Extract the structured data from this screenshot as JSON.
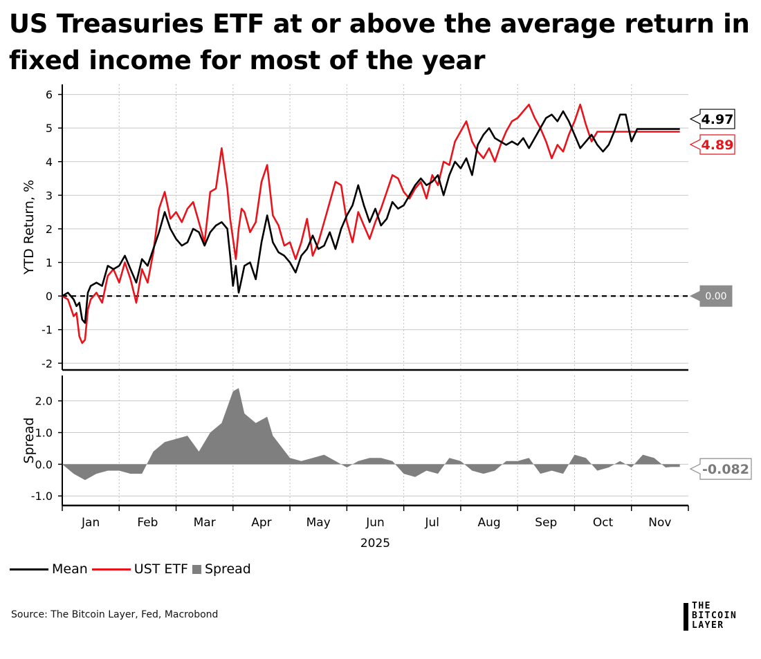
{
  "title": "US Treasuries ETF at or above the average return in fixed income for most of the year",
  "source": "Source: The Bitcoin Layer, Fed, Macrobond",
  "logo": {
    "line1": "THE",
    "line2": "BITCOIN",
    "line3": "LAYER"
  },
  "legend": [
    {
      "label": "Mean",
      "color": "#000000",
      "kind": "line"
    },
    {
      "label": "UST ETF",
      "color": "#e8131b",
      "kind": "line"
    },
    {
      "label": "Spread",
      "color": "#7f7f7f",
      "kind": "area"
    }
  ],
  "chart_data": [
    {
      "type": "line",
      "ylabel": "YTD Return, %",
      "ylim": [
        -2.2,
        6.3
      ],
      "yticks": [
        -2,
        -1,
        0,
        1,
        2,
        3,
        4,
        5,
        6
      ],
      "ytick_labels": [
        "-2",
        "-1",
        "0",
        "1",
        "2",
        "3",
        "4",
        "5",
        "6"
      ],
      "grid": true,
      "x_unit": "months since 2025-01-01",
      "series": [
        {
          "name": "Mean",
          "color": "#000000",
          "x": [
            0,
            0.1,
            0.2,
            0.25,
            0.3,
            0.35,
            0.4,
            0.45,
            0.5,
            0.6,
            0.7,
            0.8,
            0.9,
            1.0,
            1.1,
            1.2,
            1.3,
            1.4,
            1.5,
            1.6,
            1.7,
            1.8,
            1.9,
            2.0,
            2.1,
            2.2,
            2.3,
            2.4,
            2.5,
            2.6,
            2.7,
            2.8,
            2.9,
            2.95,
            3.0,
            3.05,
            3.1,
            3.15,
            3.2,
            3.3,
            3.4,
            3.5,
            3.6,
            3.7,
            3.8,
            3.9,
            4.0,
            4.1,
            4.2,
            4.3,
            4.4,
            4.5,
            4.6,
            4.7,
            4.8,
            4.9,
            5.0,
            5.1,
            5.2,
            5.3,
            5.4,
            5.5,
            5.6,
            5.7,
            5.8,
            5.9,
            6.0,
            6.1,
            6.2,
            6.3,
            6.4,
            6.5,
            6.6,
            6.7,
            6.8,
            6.9,
            7.0,
            7.1,
            7.2,
            7.3,
            7.4,
            7.5,
            7.6,
            7.7,
            7.8,
            7.9,
            8.0,
            8.1,
            8.2,
            8.3,
            8.4,
            8.5,
            8.6,
            8.7,
            8.8,
            8.9,
            9.0,
            9.1,
            9.2,
            9.3,
            9.4,
            9.5,
            9.6,
            9.7,
            9.8,
            9.9,
            10.0,
            10.1,
            10.2,
            10.3,
            10.4,
            10.5,
            10.6,
            10.7,
            10.72,
            10.78,
            10.85
          ],
          "values": [
            0,
            0.1,
            -0.1,
            -0.3,
            -0.2,
            -0.7,
            -0.8,
            0.1,
            0.3,
            0.4,
            0.3,
            0.9,
            0.8,
            0.9,
            1.2,
            0.8,
            0.4,
            1.1,
            0.9,
            1.4,
            1.9,
            2.5,
            2.0,
            1.7,
            1.5,
            1.6,
            2.0,
            1.9,
            1.5,
            1.9,
            2.1,
            2.2,
            2.0,
            1.2,
            0.3,
            0.9,
            0.1,
            0.5,
            0.9,
            1.0,
            0.5,
            1.6,
            2.4,
            1.6,
            1.3,
            1.2,
            1.0,
            0.7,
            1.2,
            1.4,
            1.8,
            1.4,
            1.5,
            1.9,
            1.4,
            2.0,
            2.4,
            2.7,
            3.3,
            2.7,
            2.2,
            2.6,
            2.1,
            2.3,
            2.8,
            2.6,
            2.7,
            3.0,
            3.3,
            3.5,
            3.3,
            3.4,
            3.6,
            3.0,
            3.6,
            4.0,
            3.8,
            4.1,
            3.6,
            4.5,
            4.8,
            5.0,
            4.7,
            4.6,
            4.5,
            4.6,
            4.5,
            4.7,
            4.4,
            4.7,
            5.0,
            5.3,
            5.4,
            5.2,
            5.5,
            5.2,
            4.8,
            4.4,
            4.6,
            4.8,
            4.5,
            4.3,
            4.5,
            4.9,
            5.4,
            5.4,
            4.6,
            4.97,
            4.97,
            4.97,
            4.97,
            4.97,
            4.97,
            4.97,
            4.97,
            4.97,
            4.97
          ]
        },
        {
          "name": "UST ETF",
          "color": "#e8131b",
          "x": [
            0,
            0.1,
            0.2,
            0.25,
            0.3,
            0.35,
            0.4,
            0.45,
            0.5,
            0.6,
            0.7,
            0.8,
            0.9,
            1.0,
            1.1,
            1.2,
            1.3,
            1.4,
            1.5,
            1.6,
            1.7,
            1.8,
            1.9,
            2.0,
            2.1,
            2.2,
            2.3,
            2.4,
            2.5,
            2.6,
            2.7,
            2.8,
            2.9,
            2.95,
            3.0,
            3.05,
            3.1,
            3.15,
            3.2,
            3.3,
            3.4,
            3.5,
            3.6,
            3.7,
            3.8,
            3.9,
            4.0,
            4.1,
            4.2,
            4.3,
            4.4,
            4.5,
            4.6,
            4.7,
            4.8,
            4.9,
            5.0,
            5.1,
            5.2,
            5.3,
            5.4,
            5.5,
            5.6,
            5.7,
            5.8,
            5.9,
            6.0,
            6.1,
            6.2,
            6.3,
            6.4,
            6.5,
            6.6,
            6.7,
            6.8,
            6.9,
            7.0,
            7.1,
            7.2,
            7.3,
            7.4,
            7.5,
            7.6,
            7.7,
            7.8,
            7.9,
            8.0,
            8.1,
            8.2,
            8.3,
            8.4,
            8.5,
            8.6,
            8.7,
            8.8,
            8.9,
            9.0,
            9.1,
            9.2,
            9.3,
            9.4,
            9.5,
            9.6,
            9.7,
            9.8,
            9.9,
            10.0,
            10.1,
            10.2,
            10.3,
            10.4,
            10.5,
            10.6,
            10.7,
            10.72,
            10.78,
            10.85
          ],
          "values": [
            0,
            -0.1,
            -0.6,
            -0.5,
            -1.2,
            -1.4,
            -1.3,
            -0.4,
            -0.1,
            0.1,
            -0.2,
            0.6,
            0.8,
            0.4,
            1.0,
            0.5,
            -0.2,
            0.8,
            0.4,
            1.3,
            2.6,
            3.1,
            2.3,
            2.5,
            2.2,
            2.6,
            2.8,
            2.2,
            1.6,
            3.1,
            3.2,
            4.4,
            3.2,
            2.3,
            1.7,
            1.1,
            2.0,
            2.6,
            2.5,
            1.9,
            2.2,
            3.4,
            3.9,
            2.4,
            2.1,
            1.5,
            1.6,
            1.1,
            1.6,
            2.3,
            1.2,
            1.6,
            2.2,
            2.8,
            3.4,
            3.3,
            2.2,
            1.6,
            2.5,
            2.1,
            1.7,
            2.2,
            2.6,
            3.1,
            3.6,
            3.5,
            3.1,
            2.9,
            3.2,
            3.4,
            2.9,
            3.6,
            3.3,
            4.0,
            3.9,
            4.6,
            4.9,
            5.2,
            4.6,
            4.3,
            4.1,
            4.4,
            4.0,
            4.5,
            4.9,
            5.2,
            5.3,
            5.5,
            5.7,
            5.3,
            5.0,
            4.6,
            4.1,
            4.5,
            4.3,
            4.8,
            5.2,
            5.7,
            5.1,
            4.6,
            4.89,
            4.89,
            4.89,
            4.89,
            4.89,
            4.89,
            4.89,
            4.89,
            4.89,
            4.89,
            4.89,
            4.89,
            4.89,
            4.89,
            4.89,
            4.89,
            4.89
          ]
        }
      ],
      "reference_line": {
        "value": 0,
        "style": "dashed",
        "label": "0.00"
      },
      "end_labels": [
        {
          "series": "Mean",
          "text": "4.97"
        },
        {
          "series": "UST ETF",
          "text": "4.89"
        }
      ]
    },
    {
      "type": "area",
      "ylabel": "Spread",
      "ylim": [
        -1.3,
        2.8
      ],
      "yticks": [
        -1.0,
        0.0,
        1.0,
        2.0
      ],
      "ytick_labels": [
        "-1.0",
        "0.0",
        "1.0",
        "2.0"
      ],
      "grid": true,
      "x_unit": "months since 2025-01-01",
      "categories": [
        "Jan",
        "Feb",
        "Mar",
        "Apr",
        "May",
        "Jun",
        "Jul",
        "Aug",
        "Sep",
        "Oct",
        "Nov"
      ],
      "xlabel": "2025",
      "series": [
        {
          "name": "Spread",
          "color": "#7f7f7f",
          "x": [
            0,
            0.2,
            0.4,
            0.6,
            0.8,
            1.0,
            1.2,
            1.4,
            1.6,
            1.8,
            2.0,
            2.2,
            2.4,
            2.6,
            2.8,
            3.0,
            3.1,
            3.2,
            3.4,
            3.6,
            3.7,
            4.0,
            4.2,
            4.4,
            4.6,
            4.8,
            5.0,
            5.2,
            5.4,
            5.6,
            5.8,
            6.0,
            6.2,
            6.4,
            6.6,
            6.8,
            7.0,
            7.2,
            7.4,
            7.6,
            7.8,
            8.0,
            8.2,
            8.4,
            8.6,
            8.8,
            9.0,
            9.2,
            9.4,
            9.6,
            9.8,
            10.0,
            10.2,
            10.4,
            10.6,
            10.7,
            10.85
          ],
          "values": [
            0,
            -0.3,
            -0.5,
            -0.3,
            -0.2,
            -0.2,
            -0.3,
            -0.3,
            0.4,
            0.7,
            0.8,
            0.9,
            0.4,
            1.0,
            1.3,
            2.3,
            2.4,
            1.6,
            1.3,
            1.5,
            0.9,
            0.2,
            0.1,
            0.2,
            0.3,
            0.1,
            -0.1,
            0.1,
            0.2,
            0.2,
            0.1,
            -0.3,
            -0.4,
            -0.2,
            -0.3,
            0.2,
            0.1,
            -0.2,
            -0.3,
            -0.2,
            0.1,
            0.1,
            0.2,
            -0.3,
            -0.2,
            -0.3,
            0.3,
            0.2,
            -0.2,
            -0.1,
            0.1,
            -0.1,
            0.3,
            0.2,
            -0.1,
            -0.082,
            -0.082
          ]
        }
      ],
      "end_labels": [
        {
          "series": "Spread",
          "text": "-0.082"
        }
      ]
    }
  ]
}
